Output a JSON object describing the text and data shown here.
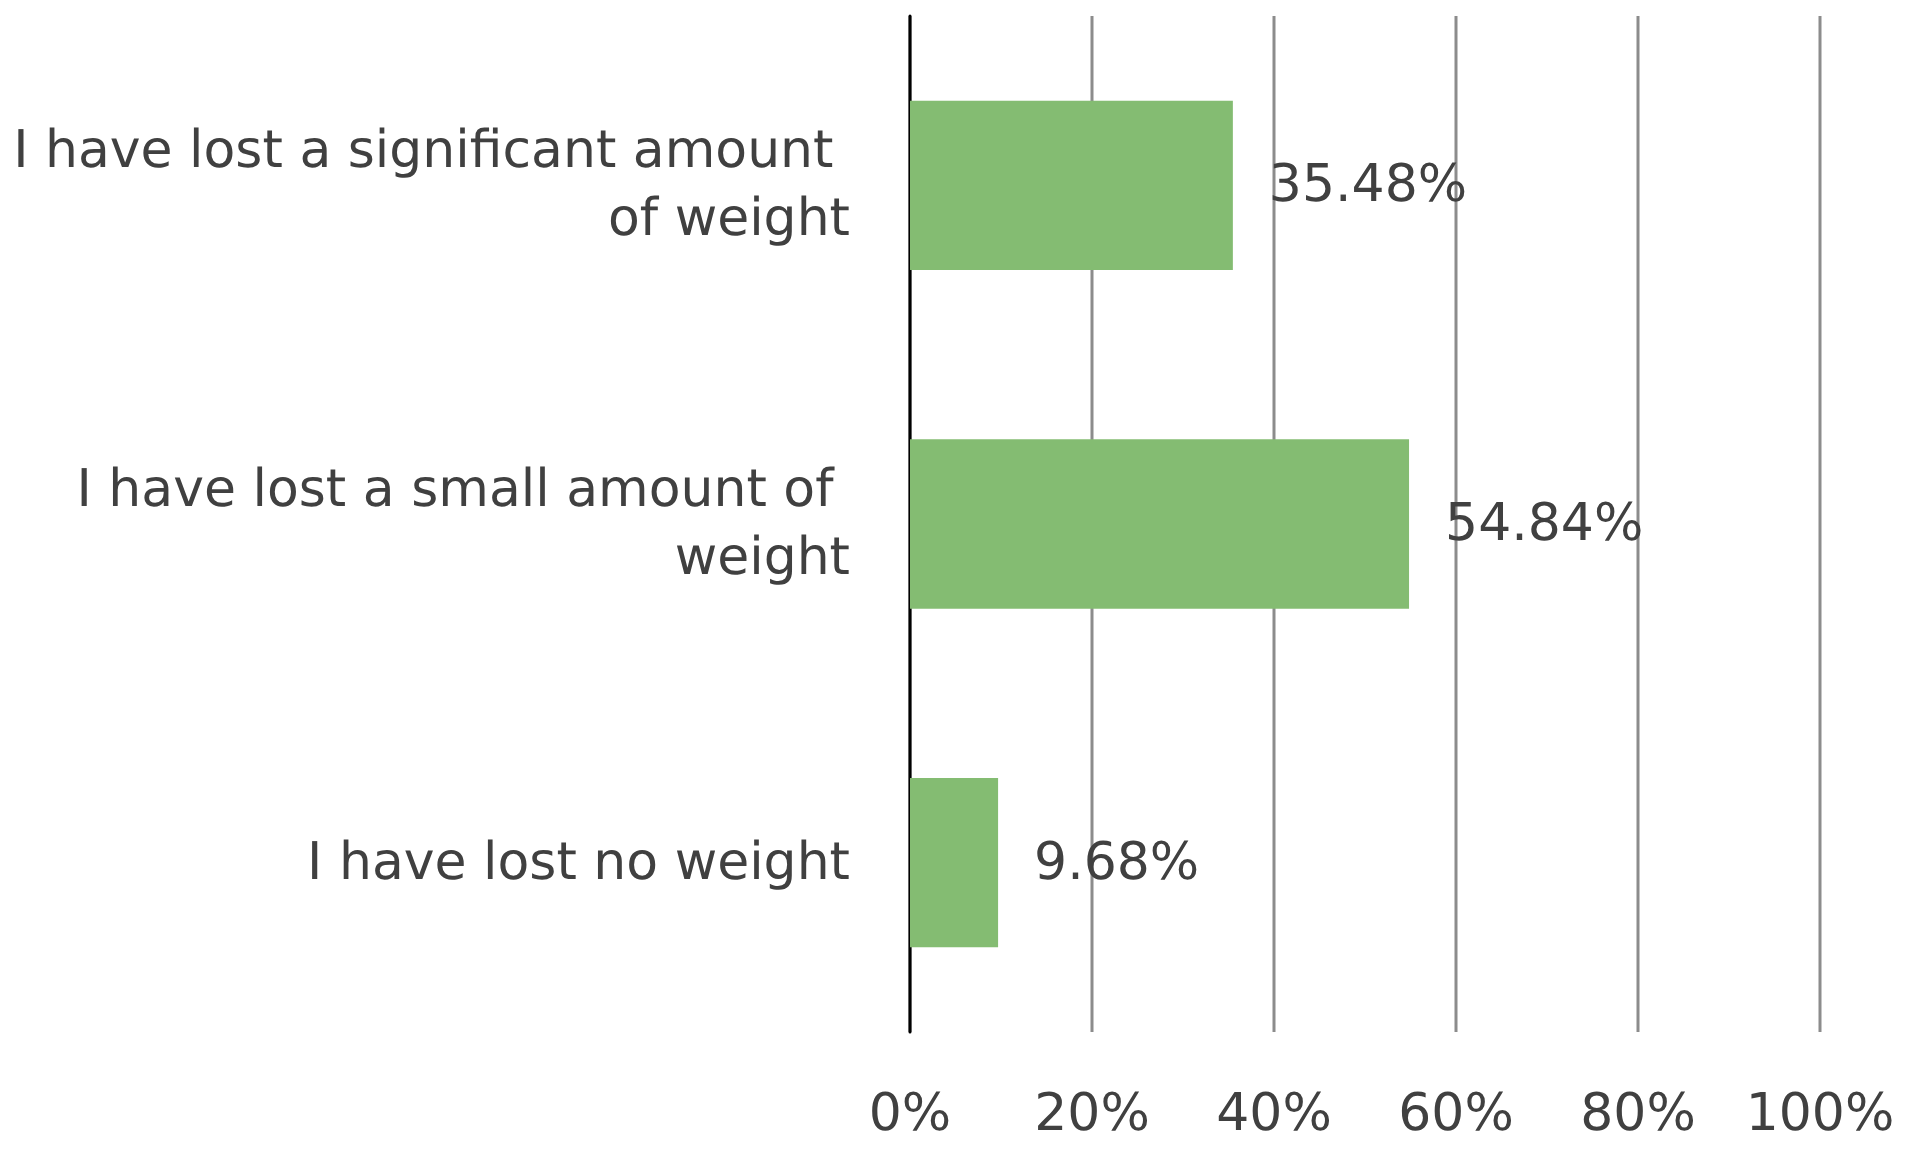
{
  "chart_data": {
    "type": "bar",
    "orientation": "horizontal",
    "categories": [
      "I have lost a significant amount of weight",
      "I have lost a small amount of weight",
      "I have lost no weight"
    ],
    "values": [
      35.48,
      54.84,
      9.68
    ],
    "value_labels": [
      "35.48%",
      "54.84%",
      "9.68%"
    ],
    "color": "#84bc72",
    "xlim": [
      0,
      100
    ],
    "xticks": [
      {
        "value": 0,
        "label": "0%"
      },
      {
        "value": 20,
        "label": "20%"
      },
      {
        "value": 40,
        "label": "40%"
      },
      {
        "value": 60,
        "label": "60%"
      },
      {
        "value": 80,
        "label": "80%"
      },
      {
        "value": 100,
        "label": "100%"
      }
    ],
    "grid": "x"
  }
}
